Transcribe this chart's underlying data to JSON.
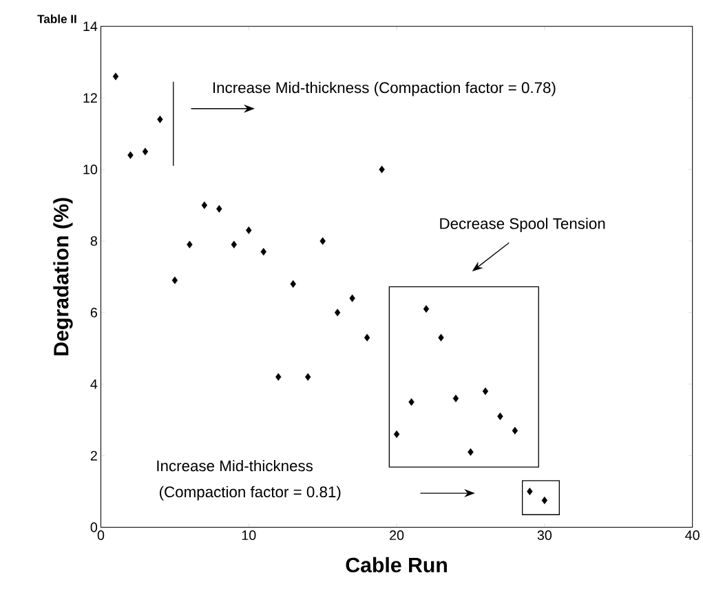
{
  "chart_data": {
    "type": "scatter",
    "title": "Table II",
    "xlabel": "Cable Run",
    "ylabel": "Degradation (%)",
    "x": [
      1,
      2,
      3,
      4,
      5,
      6,
      7,
      8,
      9,
      10,
      11,
      12,
      13,
      14,
      15,
      16,
      17,
      18,
      19,
      20,
      21,
      22,
      23,
      24,
      25,
      26,
      27,
      28,
      29,
      30
    ],
    "values": [
      12.6,
      10.4,
      10.5,
      11.4,
      6.9,
      7.9,
      9.0,
      8.9,
      7.9,
      8.3,
      7.7,
      4.2,
      6.8,
      4.2,
      8.0,
      6.0,
      6.4,
      5.3,
      10.0,
      2.6,
      3.5,
      6.1,
      5.3,
      3.6,
      2.1,
      3.8,
      3.1,
      2.7,
      1.0,
      0.75
    ],
    "color": "#000000",
    "marker": "diamond",
    "xlim": [
      0,
      40
    ],
    "xticks": [
      0,
      10,
      20,
      30,
      40
    ],
    "ylim": [
      0,
      14
    ],
    "yticks": [
      0,
      2,
      4,
      6,
      8,
      10,
      12,
      14
    ],
    "ref_lines": [
      {
        "axis": "x",
        "value": 4.9
      }
    ],
    "annotations": [
      "Increase Mid-thickness (Compaction factor = 0.78)",
      "Decrease Spool Tension",
      "Increase Mid-thickness",
      "(Compaction factor = 0.81)"
    ]
  }
}
